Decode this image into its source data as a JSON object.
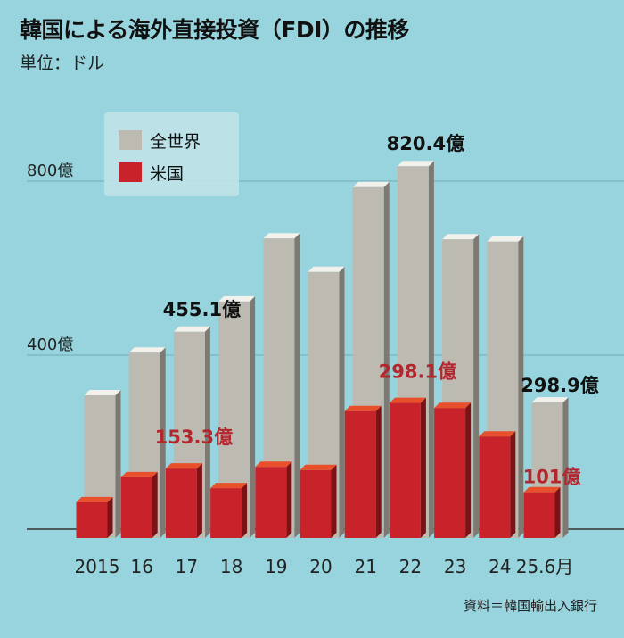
{
  "title": "韓国による海外直接投資（FDI）の推移",
  "unit": "単位：ドル",
  "source": "資料＝韓国輸出入銀行",
  "chart_data": {
    "type": "bar",
    "title": "韓国による海外直接投資（FDI）の推移",
    "ylabel": "単位：ドル",
    "categories": [
      "2015",
      "16",
      "17",
      "18",
      "19",
      "20",
      "21",
      "22",
      "23",
      "24",
      "25.6月"
    ],
    "yticks": [
      {
        "value": 400,
        "label": "400億"
      },
      {
        "value": 800,
        "label": "800億"
      }
    ],
    "ylim": [
      0,
      900
    ],
    "legend_position": "top-left",
    "series": [
      {
        "name": "全世界",
        "color": "#bdbab2",
        "values": [
          315,
          409,
          455.1,
          522,
          661,
          587,
          774,
          820.4,
          659,
          654,
          298.9
        ]
      },
      {
        "name": "米国",
        "color": "#c8232b",
        "values": [
          79,
          134,
          153.3,
          110,
          157,
          150,
          280,
          298.1,
          287,
          224,
          101
        ]
      }
    ],
    "annotations": [
      {
        "series": 0,
        "index": 2,
        "text": "455.1億",
        "color": "#111"
      },
      {
        "series": 0,
        "index": 7,
        "text": "820.4億",
        "color": "#111"
      },
      {
        "series": 0,
        "index": 10,
        "text": "298.9億",
        "color": "#111"
      },
      {
        "series": 1,
        "index": 2,
        "text": "153.3億",
        "color": "#b3262e"
      },
      {
        "series": 1,
        "index": 7,
        "text": "298.1億",
        "color": "#b3262e"
      },
      {
        "series": 1,
        "index": 10,
        "text": "101億",
        "color": "#b3262e"
      }
    ]
  }
}
